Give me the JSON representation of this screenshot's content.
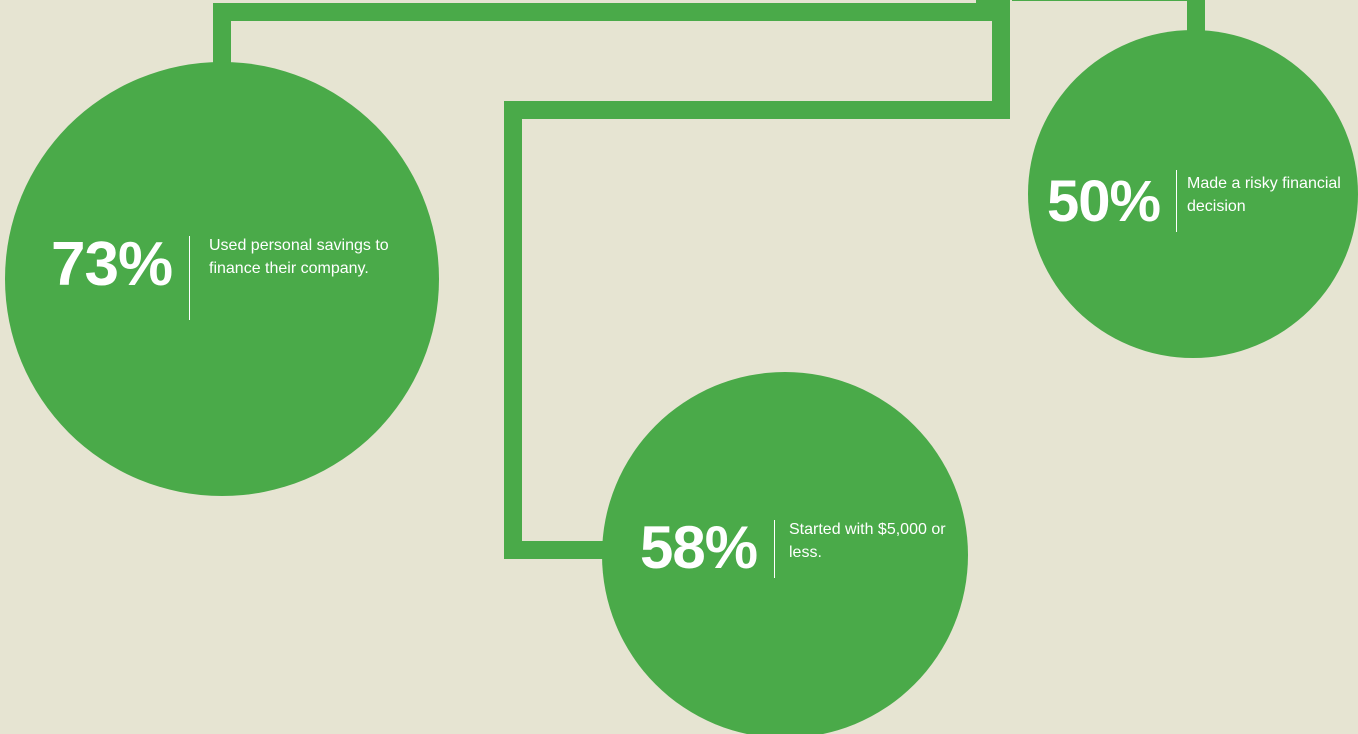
{
  "colors": {
    "background": "#e6e4d2",
    "accent": "#4aaa49",
    "text": "#ffffff"
  },
  "stats": {
    "savings": {
      "percent": "73%",
      "caption": "Used personal savings to finance their company."
    },
    "risky": {
      "percent": "50%",
      "caption": "Made a risky financial decision"
    },
    "start": {
      "percent": "58%",
      "caption": "Started with $5,000 or less."
    }
  }
}
